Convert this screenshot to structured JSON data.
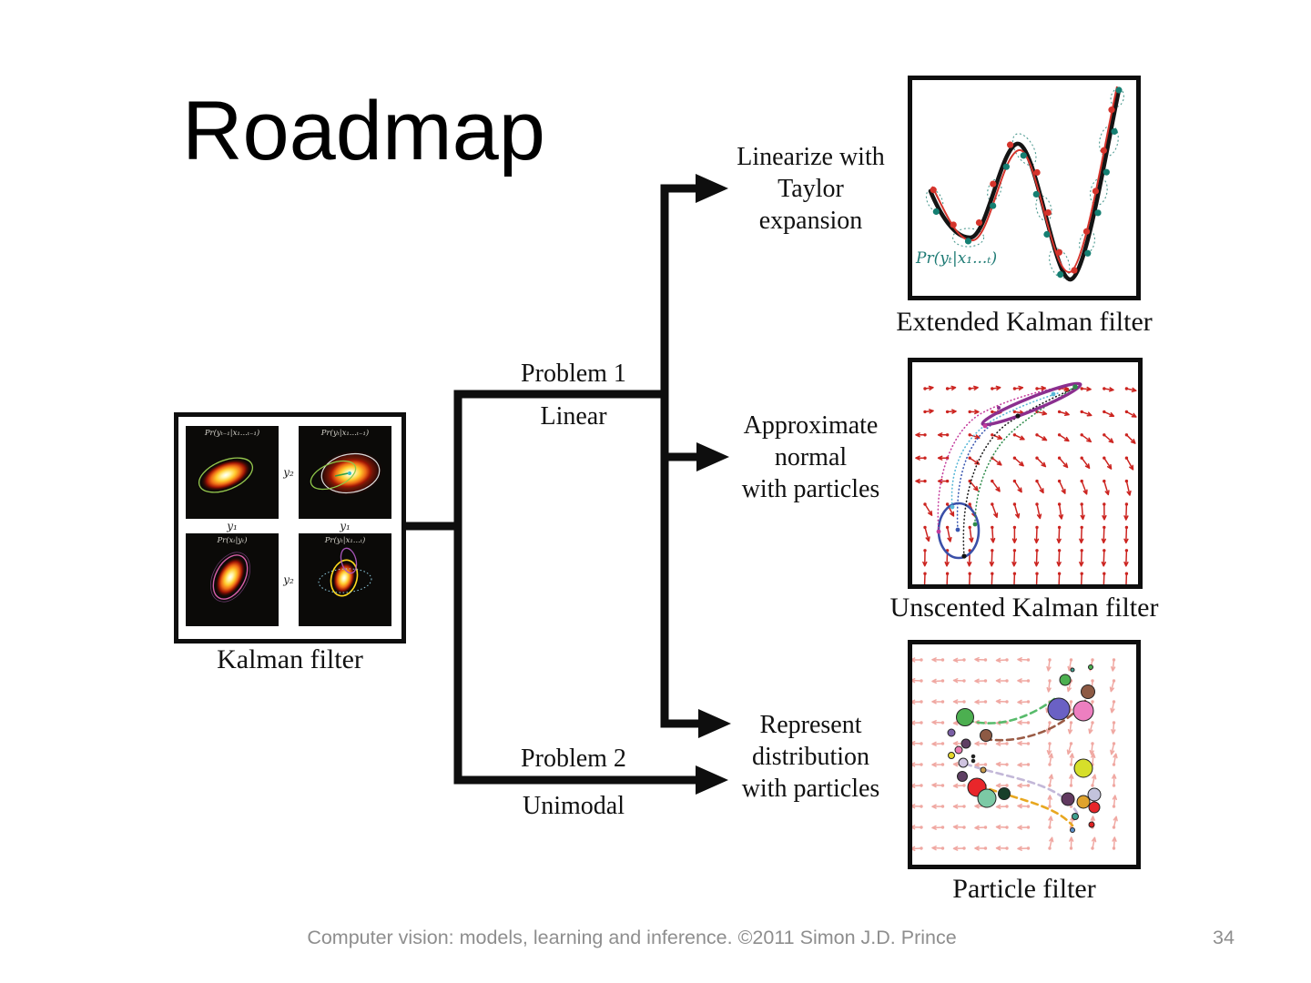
{
  "slide": {
    "title": "Roadmap",
    "footer": {
      "text": "Computer vision: models, learning and inference.  ©2011 Simon J.D. Prince",
      "page": "34"
    }
  },
  "diagram": {
    "colors": {
      "line_black": "#0e0e0e",
      "quiver_red": "#cc2420",
      "quiver_pink": "#f0a8a2",
      "teal_label": "#1d7a74",
      "footer_gray": "#8e8e8e"
    },
    "branches": {
      "problem1": "Problem 1",
      "linear": "Linear",
      "problem2": "Problem 2",
      "unimodal": "Unimodal"
    },
    "kalman": {
      "caption": "Kalman filter",
      "axis": {
        "y1": "y₁",
        "y2": "y₂"
      },
      "panels": [
        {
          "title": "Pr(yₜ₋₁|x₁...ₜ₋₁)"
        },
        {
          "title": "Pr(yₜ|x₁...ₜ₋₁)"
        },
        {
          "title": "Pr(xₜ|yₜ)"
        },
        {
          "title": "Pr(yₜ|x₁...ₜ)"
        }
      ]
    },
    "methods": [
      {
        "label_lines": [
          "Linearize with",
          "Taylor",
          "expansion"
        ],
        "caption": "Extended Kalman filter",
        "plot_label": "Pr(yₜ|x₁...ₜ)"
      },
      {
        "label_lines": [
          "Approximate",
          "normal",
          "with particles"
        ],
        "caption": "Unscented Kalman filter"
      },
      {
        "label_lines": [
          "Represent",
          "distribution",
          "with particles"
        ],
        "caption": "Particle filter"
      }
    ]
  }
}
